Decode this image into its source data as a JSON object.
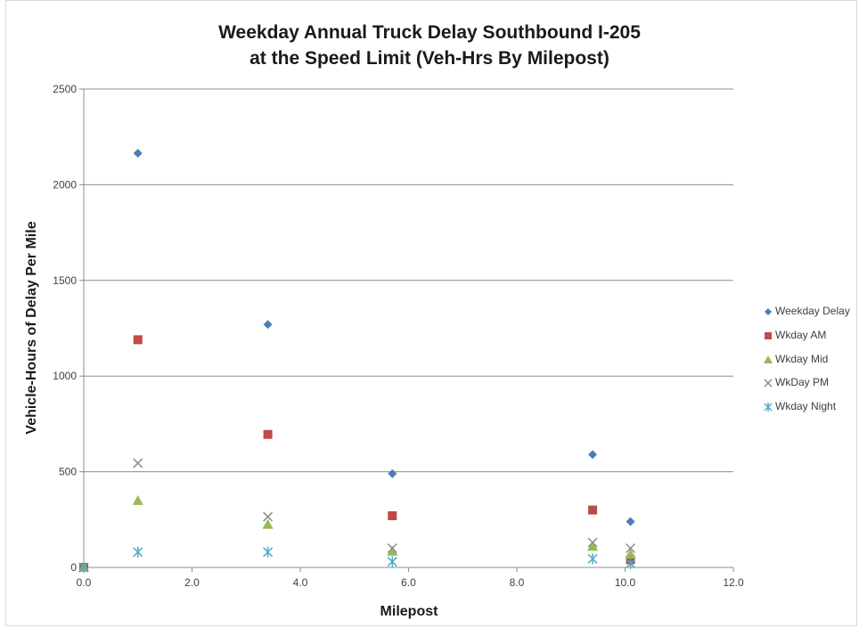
{
  "chart_data": {
    "type": "scatter",
    "title": [
      "Weekday Annual Truck Delay Southbound I-205",
      "at the Speed Limit (Veh-Hrs By Milepost)"
    ],
    "xlabel": "Milepost",
    "ylabel": "Vehicle-Hours of Delay Per Mile",
    "xlim": [
      0,
      12
    ],
    "ylim": [
      0,
      2500
    ],
    "xticks": [
      "0.0",
      "2.0",
      "4.0",
      "6.0",
      "8.0",
      "10.0",
      "12.0"
    ],
    "yticks": [
      "0",
      "500",
      "1000",
      "1500",
      "2000",
      "2500"
    ],
    "grid": "horizontal",
    "legend_position": "right",
    "series": [
      {
        "name": "Weekday Delay",
        "marker": "diamond",
        "color": "#4a7ebb",
        "points": [
          [
            0.0,
            0
          ],
          [
            1.0,
            2165
          ],
          [
            3.4,
            1270
          ],
          [
            5.7,
            490
          ],
          [
            9.4,
            590
          ],
          [
            10.1,
            240
          ]
        ]
      },
      {
        "name": "Wkday AM",
        "marker": "square",
        "color": "#be4b48",
        "points": [
          [
            0.0,
            0
          ],
          [
            1.0,
            1190
          ],
          [
            3.4,
            695
          ],
          [
            5.7,
            270
          ],
          [
            9.4,
            300
          ],
          [
            10.1,
            40
          ]
        ]
      },
      {
        "name": "Wkday Mid",
        "marker": "triangle",
        "color": "#98b954",
        "points": [
          [
            0.0,
            0
          ],
          [
            1.0,
            350
          ],
          [
            3.4,
            225
          ],
          [
            5.7,
            85
          ],
          [
            9.4,
            110
          ],
          [
            10.1,
            70
          ]
        ]
      },
      {
        "name": "WkDay PM",
        "marker": "x",
        "color": "#8c8c8c",
        "points": [
          [
            0.0,
            0
          ],
          [
            1.0,
            545
          ],
          [
            3.4,
            265
          ],
          [
            5.7,
            100
          ],
          [
            9.4,
            130
          ],
          [
            10.1,
            100
          ]
        ]
      },
      {
        "name": "Wkday Night",
        "marker": "star",
        "color": "#4bacc6",
        "points": [
          [
            0.0,
            0
          ],
          [
            1.0,
            80
          ],
          [
            3.4,
            80
          ],
          [
            5.7,
            30
          ],
          [
            9.4,
            45
          ],
          [
            10.1,
            20
          ]
        ]
      }
    ]
  }
}
